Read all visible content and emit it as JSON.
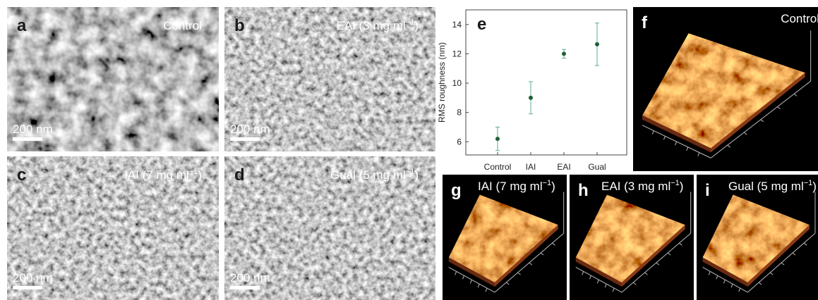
{
  "sem_panels": [
    {
      "letter": "a",
      "caption_parts": [
        "Control"
      ],
      "scale_bar": "200 nm"
    },
    {
      "letter": "b",
      "caption_parts": [
        "EAI (3 mg ml",
        "−1",
        ")"
      ],
      "scale_bar": "200 nm"
    },
    {
      "letter": "c",
      "caption_parts": [
        "IAI (7 mg ml",
        "−1",
        ")"
      ],
      "scale_bar": "200 nm"
    },
    {
      "letter": "d",
      "caption_parts": [
        "Gual (5 mg ml",
        "−1",
        ")"
      ],
      "scale_bar": "200 nm"
    }
  ],
  "afm_panels": [
    {
      "letter": "f",
      "caption_parts": [
        "Control"
      ]
    },
    {
      "letter": "g",
      "caption_parts": [
        "IAI (7 mg ml",
        "−1",
        ")"
      ]
    },
    {
      "letter": "h",
      "caption_parts": [
        "EAI (3 mg ml",
        "−1",
        ")"
      ]
    },
    {
      "letter": "i",
      "caption_parts": [
        "Gual (5 mg ml",
        "−1",
        ")"
      ]
    }
  ],
  "chart_data": {
    "type": "scatter",
    "panel_label": "e",
    "y_label": "RMS roughness (nm)",
    "categories": [
      "Control",
      "IAI",
      "EAI",
      "Gual"
    ],
    "values": [
      6.2,
      9.0,
      12.0,
      12.65
    ],
    "errors": [
      0.8,
      1.1,
      0.3,
      1.45
    ],
    "color": "#1f5f3a",
    "error_color": "#5fa89a",
    "ylim": [
      5.1,
      15
    ],
    "yticks": [
      6,
      8,
      10,
      12,
      14
    ]
  }
}
